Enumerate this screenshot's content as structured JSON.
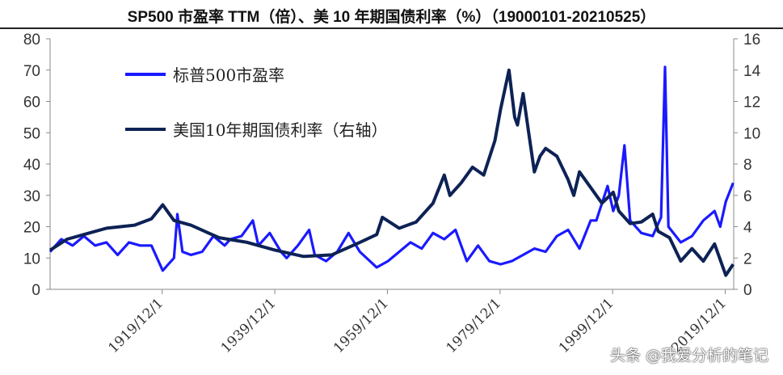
{
  "chart_data": {
    "type": "line",
    "title": "SP500 市盈率 TTM（倍）、美 10 年期国债利率（%）（19000101-20210525）",
    "xlabel": "",
    "ylabel_left": "",
    "ylabel_right": "",
    "xlim": [
      1900,
      2021.4
    ],
    "ylim_left": [
      0,
      80
    ],
    "ylim_right": [
      0,
      16
    ],
    "left_ticks": [
      "0",
      "10",
      "20",
      "30",
      "40",
      "50",
      "60",
      "70",
      "80"
    ],
    "right_ticks": [
      "0",
      "2",
      "4",
      "6",
      "8",
      "10",
      "12",
      "14",
      "16"
    ],
    "x_ticks": [
      {
        "year": 1919.9,
        "label": "1919/12/1"
      },
      {
        "year": 1939.9,
        "label": "1939/12/1"
      },
      {
        "year": 1959.9,
        "label": "1959/12/1"
      },
      {
        "year": 1979.9,
        "label": "1979/12/1"
      },
      {
        "year": 1999.9,
        "label": "1999/12/1"
      },
      {
        "year": 2019.9,
        "label": "2019/12/1"
      }
    ],
    "grid": false,
    "legend_position": "top-left",
    "series": [
      {
        "name": "标普500市盈率",
        "axis": "left",
        "color": "#1a1aff",
        "points": [
          [
            1900,
            12
          ],
          [
            1902,
            16
          ],
          [
            1904,
            14
          ],
          [
            1906,
            17
          ],
          [
            1908,
            14
          ],
          [
            1910,
            15
          ],
          [
            1912,
            11
          ],
          [
            1914,
            15
          ],
          [
            1916,
            14
          ],
          [
            1918,
            14
          ],
          [
            1920,
            6
          ],
          [
            1921,
            8
          ],
          [
            1922,
            10
          ],
          [
            1922.6,
            24
          ],
          [
            1923.5,
            12
          ],
          [
            1925,
            11
          ],
          [
            1927,
            12
          ],
          [
            1929,
            17
          ],
          [
            1931,
            14
          ],
          [
            1932,
            16
          ],
          [
            1934,
            17
          ],
          [
            1936,
            22
          ],
          [
            1937,
            14
          ],
          [
            1939,
            18
          ],
          [
            1941,
            12
          ],
          [
            1942,
            10
          ],
          [
            1944,
            14
          ],
          [
            1946,
            19
          ],
          [
            1947,
            11
          ],
          [
            1949,
            9
          ],
          [
            1951,
            12
          ],
          [
            1953,
            18
          ],
          [
            1955,
            12
          ],
          [
            1958,
            7
          ],
          [
            1960,
            9
          ],
          [
            1962,
            12
          ],
          [
            1964,
            15
          ],
          [
            1966,
            13
          ],
          [
            1968,
            18
          ],
          [
            1970,
            16
          ],
          [
            1972,
            19
          ],
          [
            1974,
            9
          ],
          [
            1976,
            14
          ],
          [
            1978,
            9
          ],
          [
            1980,
            8
          ],
          [
            1982,
            9
          ],
          [
            1984,
            11
          ],
          [
            1986,
            13
          ],
          [
            1988,
            12
          ],
          [
            1990,
            17
          ],
          [
            1992,
            19
          ],
          [
            1994,
            13
          ],
          [
            1996,
            22
          ],
          [
            1997,
            22
          ],
          [
            1999,
            33
          ],
          [
            2000,
            25
          ],
          [
            2001,
            30
          ],
          [
            2002,
            46
          ],
          [
            2003,
            22
          ],
          [
            2005,
            18
          ],
          [
            2007,
            17
          ],
          [
            2008.5,
            23
          ],
          [
            2009.2,
            71
          ],
          [
            2009.8,
            20
          ],
          [
            2012,
            15
          ],
          [
            2014,
            17
          ],
          [
            2016,
            22
          ],
          [
            2018,
            25
          ],
          [
            2019,
            20
          ],
          [
            2020,
            28
          ],
          [
            2021.3,
            34
          ]
        ]
      },
      {
        "name": "美国10年期国债利率（右轴）",
        "axis": "right",
        "color": "#0d2255",
        "points": [
          [
            1900,
            2.5
          ],
          [
            1903,
            3.2
          ],
          [
            1906,
            3.5
          ],
          [
            1910,
            3.9
          ],
          [
            1915,
            4.1
          ],
          [
            1918,
            4.5
          ],
          [
            1920,
            5.4
          ],
          [
            1922,
            4.4
          ],
          [
            1925,
            4.1
          ],
          [
            1930,
            3.3
          ],
          [
            1935,
            3.0
          ],
          [
            1940,
            2.5
          ],
          [
            1945,
            2.1
          ],
          [
            1950,
            2.2
          ],
          [
            1955,
            3.0
          ],
          [
            1958,
            3.5
          ],
          [
            1959,
            4.6
          ],
          [
            1962,
            3.9
          ],
          [
            1965,
            4.3
          ],
          [
            1968,
            5.5
          ],
          [
            1970,
            7.3
          ],
          [
            1971,
            6
          ],
          [
            1973,
            6.8
          ],
          [
            1975,
            7.8
          ],
          [
            1977,
            7.3
          ],
          [
            1979,
            9.5
          ],
          [
            1980,
            11.5
          ],
          [
            1981.5,
            14
          ],
          [
            1982.5,
            11
          ],
          [
            1983,
            10.5
          ],
          [
            1984,
            12.5
          ],
          [
            1985,
            10
          ],
          [
            1986,
            7.5
          ],
          [
            1987,
            8.5
          ],
          [
            1988,
            9
          ],
          [
            1990,
            8.5
          ],
          [
            1992,
            7
          ],
          [
            1993,
            6
          ],
          [
            1994,
            7.5
          ],
          [
            1996,
            6.5
          ],
          [
            1998,
            5.5
          ],
          [
            2000,
            6.2
          ],
          [
            2001,
            5
          ],
          [
            2003,
            4.2
          ],
          [
            2005,
            4.3
          ],
          [
            2007,
            4.8
          ],
          [
            2008,
            3.7
          ],
          [
            2010,
            3.3
          ],
          [
            2012,
            1.8
          ],
          [
            2014,
            2.6
          ],
          [
            2016,
            1.8
          ],
          [
            2018,
            2.9
          ],
          [
            2020,
            0.9
          ],
          [
            2021.3,
            1.6
          ]
        ]
      }
    ]
  },
  "watermark": "头条 @我爱分析的笔记"
}
